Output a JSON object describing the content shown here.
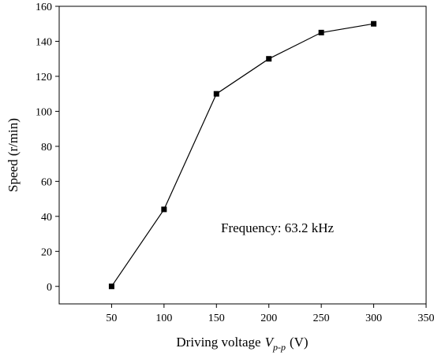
{
  "chart_data": {
    "type": "line",
    "x": [
      50,
      100,
      150,
      200,
      250,
      300
    ],
    "series": [
      {
        "values": [
          0,
          44,
          110,
          130,
          145,
          150
        ]
      }
    ],
    "xlabel": "Driving voltage",
    "xlabel_var": "V",
    "xlabel_sub": "p-p",
    "xlabel_unit": "(V)",
    "ylabel": "Speed (r/min)",
    "xlim": [
      0,
      350
    ],
    "ylim": [
      -10,
      160
    ],
    "xticks": [
      50,
      100,
      150,
      200,
      250,
      300,
      350
    ],
    "yticks": [
      0,
      20,
      40,
      60,
      80,
      100,
      120,
      140,
      160
    ],
    "annotation": "Frequency: 63.2 kHz",
    "marker": "square",
    "line_color": "#000000",
    "marker_color": "#000000",
    "grid": false,
    "legend": false
  }
}
